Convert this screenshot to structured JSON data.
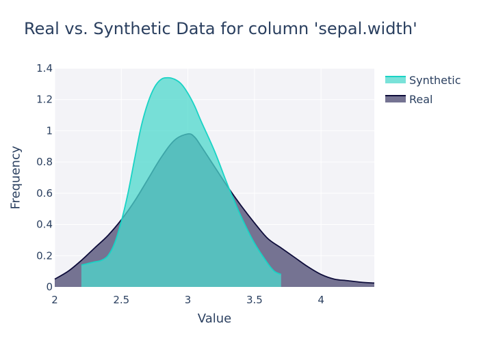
{
  "chart_data": {
    "type": "area",
    "title": "Real vs. Synthetic Data for column 'sepal.width'",
    "xlabel": "Value",
    "ylabel": "Frequency",
    "xlim": [
      2,
      4.4
    ],
    "ylim": [
      0,
      1.4
    ],
    "x_ticks": [
      2,
      2.5,
      3,
      3.5,
      4
    ],
    "x_tick_labels": [
      "2",
      "2.5",
      "3",
      "3.5",
      "4"
    ],
    "y_ticks": [
      0,
      0.2,
      0.4,
      0.6,
      0.8,
      1,
      1.2,
      1.4
    ],
    "y_tick_labels": [
      "0",
      "0.2",
      "0.4",
      "0.6",
      "0.8",
      "1",
      "1.2",
      "1.4"
    ],
    "grid": true,
    "legend_position": "top-right",
    "series": [
      {
        "name": "Real",
        "line_color": "#0d0c3a",
        "fill_color": "#6e6b8c",
        "x": [
          2.0,
          2.1,
          2.2,
          2.3,
          2.4,
          2.5,
          2.6,
          2.7,
          2.8,
          2.9,
          3.0,
          3.05,
          3.1,
          3.2,
          3.3,
          3.4,
          3.5,
          3.6,
          3.7,
          3.8,
          3.9,
          4.0,
          4.1,
          4.2,
          4.3,
          4.4
        ],
        "y": [
          0.05,
          0.1,
          0.17,
          0.25,
          0.33,
          0.43,
          0.55,
          0.69,
          0.83,
          0.94,
          0.98,
          0.96,
          0.9,
          0.77,
          0.64,
          0.52,
          0.41,
          0.31,
          0.25,
          0.19,
          0.13,
          0.08,
          0.05,
          0.04,
          0.03,
          0.025
        ]
      },
      {
        "name": "Synthetic",
        "line_color": "#19d3c5",
        "fill_color": "#4ed8cc",
        "x": [
          2.2,
          2.3,
          2.35,
          2.4,
          2.45,
          2.5,
          2.55,
          2.6,
          2.65,
          2.7,
          2.75,
          2.8,
          2.85,
          2.9,
          2.95,
          3.0,
          3.05,
          3.1,
          3.2,
          3.3,
          3.4,
          3.5,
          3.6,
          3.65,
          3.7
        ],
        "y": [
          0.14,
          0.16,
          0.17,
          0.2,
          0.28,
          0.42,
          0.6,
          0.82,
          1.03,
          1.18,
          1.28,
          1.33,
          1.34,
          1.33,
          1.3,
          1.24,
          1.16,
          1.06,
          0.87,
          0.65,
          0.45,
          0.28,
          0.15,
          0.1,
          0.08
        ]
      }
    ]
  }
}
